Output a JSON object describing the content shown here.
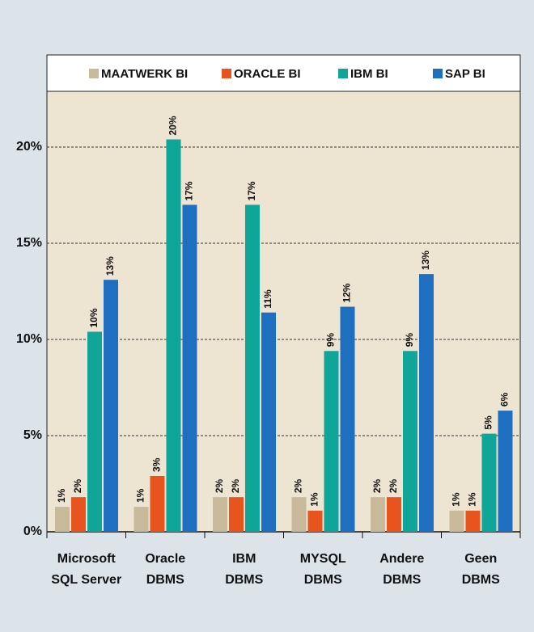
{
  "chart_data": {
    "type": "bar",
    "categories": [
      [
        "Microsoft",
        "SQL Server"
      ],
      [
        "Oracle",
        "DBMS"
      ],
      [
        "IBM",
        "DBMS"
      ],
      [
        "MYSQL",
        "DBMS"
      ],
      [
        "Andere",
        "DBMS"
      ],
      [
        "Geen",
        "DBMS"
      ]
    ],
    "series": [
      {
        "name": "MAATWERK BI",
        "color": "#c9b99b",
        "values": [
          1.3,
          1.3,
          1.8,
          1.8,
          1.8,
          1.1
        ],
        "value_labels": [
          "1%",
          "1%",
          "2%",
          "2%",
          "2%",
          "1%"
        ]
      },
      {
        "name": "ORACLE BI",
        "color": "#e8541e",
        "values": [
          1.8,
          2.9,
          1.8,
          1.1,
          1.8,
          1.1
        ],
        "value_labels": [
          "2%",
          "3%",
          "2%",
          "1%",
          "2%",
          "1%"
        ]
      },
      {
        "name": "IBM BI",
        "color": "#0fa598",
        "values": [
          10.4,
          20.4,
          17.0,
          9.4,
          9.4,
          5.1
        ],
        "value_labels": [
          "10%",
          "20%",
          "17%",
          "9%",
          "9%",
          "5%"
        ]
      },
      {
        "name": "SAP BI",
        "color": "#1f6fc0",
        "values": [
          13.1,
          17.0,
          11.4,
          11.7,
          13.4,
          6.3
        ],
        "value_labels": [
          "13%",
          "17%",
          "11%",
          "12%",
          "13%",
          "6%"
        ]
      }
    ],
    "ylim": [
      0,
      22.9
    ],
    "yticks": [
      {
        "value": 0,
        "label": "0%"
      },
      {
        "value": 5,
        "label": "5%"
      },
      {
        "value": 10,
        "label": "10%"
      },
      {
        "value": 15,
        "label": "15%"
      },
      {
        "value": 20,
        "label": "20%"
      }
    ],
    "grid": true
  }
}
